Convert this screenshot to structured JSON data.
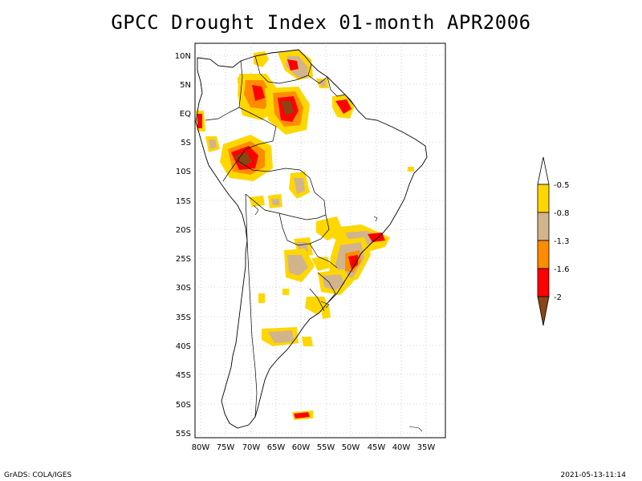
{
  "title": "GPCC Drought Index 01-month APR2006",
  "footer": {
    "left": "GrADS: COLA/IGES",
    "right": "2021-05-13-11:14"
  },
  "lat_ticks": [
    "10N",
    "5N",
    "EQ",
    "5S",
    "10S",
    "15S",
    "20S",
    "25S",
    "30S",
    "35S",
    "40S",
    "45S",
    "50S",
    "55S"
  ],
  "lon_ticks": [
    "80W",
    "75W",
    "70W",
    "65W",
    "60W",
    "55W",
    "50W",
    "45W",
    "40W",
    "35W"
  ],
  "legend": {
    "labels": [
      "-0.5",
      "-0.8",
      "-1.3",
      "-1.6",
      "-2"
    ],
    "colors": [
      "#ffffff",
      "#ffd700",
      "#d2b48c",
      "#ff8c00",
      "#ff0000",
      "#8b4513"
    ]
  },
  "colors": {
    "land_border": "#000000",
    "grid": "#aaaaaa"
  }
}
